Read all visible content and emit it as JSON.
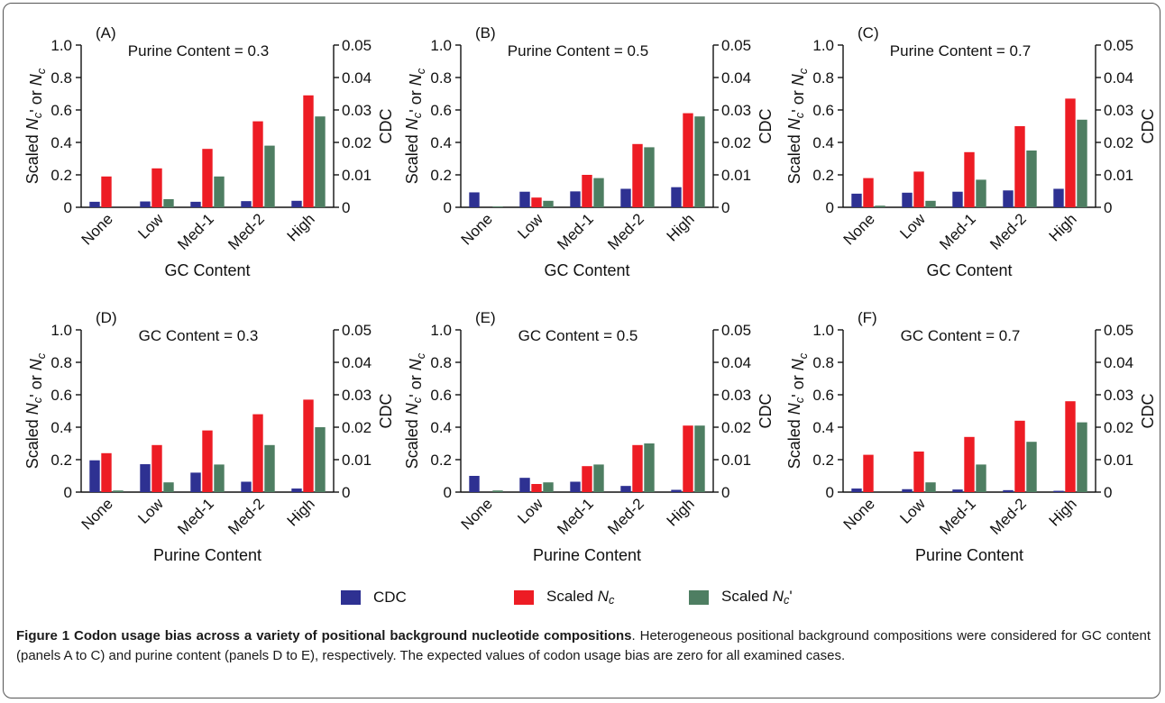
{
  "chart_data": [
    {
      "type": "bar",
      "panel": "(A)",
      "title": "Purine Content = 0.3",
      "xlabel": "GC Content",
      "ylabel_left": "Scaled Nc' or Nc",
      "ylabel_right": "CDC",
      "categories": [
        "None",
        "Low",
        "Med-1",
        "Med-2",
        "High"
      ],
      "ylim_left": [
        0,
        1.0
      ],
      "ylim_right": [
        0,
        0.05
      ],
      "yticks_left": [
        "0",
        "0.2",
        "0.4",
        "0.6",
        "0.8",
        "1.0"
      ],
      "yticks_right": [
        "0",
        "0.01",
        "0.02",
        "0.03",
        "0.04",
        "0.05"
      ],
      "series": [
        {
          "name": "CDC",
          "axis": "right",
          "values": [
            0.0017,
            0.0018,
            0.0017,
            0.0019,
            0.002
          ]
        },
        {
          "name": "Scaled Nc",
          "axis": "left",
          "values": [
            0.19,
            0.24,
            0.36,
            0.53,
            0.69
          ]
        },
        {
          "name": "Scaled Nc'",
          "axis": "left",
          "values": [
            0.0,
            0.05,
            0.19,
            0.38,
            0.56
          ]
        }
      ]
    },
    {
      "type": "bar",
      "panel": "(B)",
      "title": "Purine Content = 0.5",
      "xlabel": "GC Content",
      "ylabel_left": "Scaled Nc' or Nc",
      "ylabel_right": "CDC",
      "categories": [
        "None",
        "Low",
        "Med-1",
        "Med-2",
        "High"
      ],
      "ylim_left": [
        0,
        1.0
      ],
      "ylim_right": [
        0,
        0.05
      ],
      "yticks_left": [
        "0",
        "0.2",
        "0.4",
        "0.6",
        "0.8",
        "1.0"
      ],
      "yticks_right": [
        "0",
        "0.01",
        "0.02",
        "0.03",
        "0.04",
        "0.05"
      ],
      "series": [
        {
          "name": "CDC",
          "axis": "right",
          "values": [
            0.0046,
            0.0048,
            0.0049,
            0.0057,
            0.0062
          ]
        },
        {
          "name": "Scaled Nc",
          "axis": "left",
          "values": [
            0.0,
            0.06,
            0.2,
            0.39,
            0.58
          ]
        },
        {
          "name": "Scaled Nc'",
          "axis": "left",
          "values": [
            0.005,
            0.04,
            0.18,
            0.37,
            0.56
          ]
        }
      ]
    },
    {
      "type": "bar",
      "panel": "(C)",
      "title": "Purine Content = 0.7",
      "xlabel": "GC Content",
      "ylabel_left": "Scaled Nc' or Nc",
      "ylabel_right": "CDC",
      "categories": [
        "None",
        "Low",
        "Med-1",
        "Med-2",
        "High"
      ],
      "ylim_left": [
        0,
        1.0
      ],
      "ylim_right": [
        0,
        0.05
      ],
      "yticks_left": [
        "0",
        "0.2",
        "0.4",
        "0.6",
        "0.8",
        "1.0"
      ],
      "yticks_right": [
        "0",
        "0.01",
        "0.02",
        "0.03",
        "0.04",
        "0.05"
      ],
      "series": [
        {
          "name": "CDC",
          "axis": "right",
          "values": [
            0.0042,
            0.0045,
            0.0048,
            0.0052,
            0.0057
          ]
        },
        {
          "name": "Scaled Nc",
          "axis": "left",
          "values": [
            0.18,
            0.22,
            0.34,
            0.5,
            0.67
          ]
        },
        {
          "name": "Scaled Nc'",
          "axis": "left",
          "values": [
            0.01,
            0.04,
            0.17,
            0.35,
            0.54
          ]
        }
      ]
    },
    {
      "type": "bar",
      "panel": "(D)",
      "title": "GC Content = 0.3",
      "xlabel": "Purine Content",
      "ylabel_left": "Scaled Nc' or Nc",
      "ylabel_right": "CDC",
      "categories": [
        "None",
        "Low",
        "Med-1",
        "Med-2",
        "High"
      ],
      "ylim_left": [
        0,
        1.0
      ],
      "ylim_right": [
        0,
        0.05
      ],
      "yticks_left": [
        "0",
        "0.2",
        "0.4",
        "0.6",
        "0.8",
        "1.0"
      ],
      "yticks_right": [
        "0",
        "0.01",
        "0.02",
        "0.03",
        "0.04",
        "0.05"
      ],
      "series": [
        {
          "name": "CDC",
          "axis": "right",
          "values": [
            0.0098,
            0.0086,
            0.006,
            0.0032,
            0.0011
          ]
        },
        {
          "name": "Scaled Nc",
          "axis": "left",
          "values": [
            0.24,
            0.29,
            0.38,
            0.48,
            0.57
          ]
        },
        {
          "name": "Scaled Nc'",
          "axis": "left",
          "values": [
            0.01,
            0.06,
            0.17,
            0.29,
            0.4
          ]
        }
      ]
    },
    {
      "type": "bar",
      "panel": "(E)",
      "title": "GC Content = 0.5",
      "xlabel": "Purine Content",
      "ylabel_left": "Scaled Nc' or Nc",
      "ylabel_right": "CDC",
      "categories": [
        "None",
        "Low",
        "Med-1",
        "Med-2",
        "High"
      ],
      "ylim_left": [
        0,
        1.0
      ],
      "ylim_right": [
        0,
        0.05
      ],
      "yticks_left": [
        "0",
        "0.2",
        "0.4",
        "0.6",
        "0.8",
        "1.0"
      ],
      "yticks_right": [
        "0",
        "0.01",
        "0.02",
        "0.03",
        "0.04",
        "0.05"
      ],
      "series": [
        {
          "name": "CDC",
          "axis": "right",
          "values": [
            0.005,
            0.0044,
            0.0032,
            0.0019,
            0.0007
          ]
        },
        {
          "name": "Scaled Nc",
          "axis": "left",
          "values": [
            0.0,
            0.05,
            0.16,
            0.29,
            0.41
          ]
        },
        {
          "name": "Scaled Nc'",
          "axis": "left",
          "values": [
            0.01,
            0.06,
            0.17,
            0.3,
            0.41
          ]
        }
      ]
    },
    {
      "type": "bar",
      "panel": "(F)",
      "title": "GC Content = 0.7",
      "xlabel": "Purine Content",
      "ylabel_left": "Scaled Nc' or Nc",
      "ylabel_right": "CDC",
      "categories": [
        "None",
        "Low",
        "Med-1",
        "Med-2",
        "High"
      ],
      "ylim_left": [
        0,
        1.0
      ],
      "ylim_right": [
        0,
        0.05
      ],
      "yticks_left": [
        "0",
        "0.2",
        "0.4",
        "0.6",
        "0.8",
        "1.0"
      ],
      "yticks_right": [
        "0",
        "0.01",
        "0.02",
        "0.03",
        "0.04",
        "0.05"
      ],
      "series": [
        {
          "name": "CDC",
          "axis": "right",
          "values": [
            0.0011,
            0.0009,
            0.0008,
            0.0006,
            0.0004
          ]
        },
        {
          "name": "Scaled Nc",
          "axis": "left",
          "values": [
            0.23,
            0.25,
            0.34,
            0.44,
            0.56
          ]
        },
        {
          "name": "Scaled Nc'",
          "axis": "left",
          "values": [
            0.0,
            0.06,
            0.17,
            0.31,
            0.43
          ]
        }
      ]
    }
  ],
  "legend": {
    "items": [
      {
        "label": "CDC",
        "color": "#2e3192"
      },
      {
        "label": "Scaled Nc",
        "color": "#ed1c24"
      },
      {
        "label": "Scaled Nc'",
        "color": "#4e7e62"
      }
    ]
  },
  "caption": {
    "title": "Figure 1 Codon usage bias across a variety of positional background nucleotide compositions",
    "text": ". Heterogeneous positional background compositions were considered for GC content (panels A to C) and purine content (panels D to E), respectively. The expected values of codon usage bias are zero for all examined cases."
  },
  "colors": {
    "cdc": "#2e3192",
    "nc": "#ed1c24",
    "ncp": "#4e7e62"
  }
}
